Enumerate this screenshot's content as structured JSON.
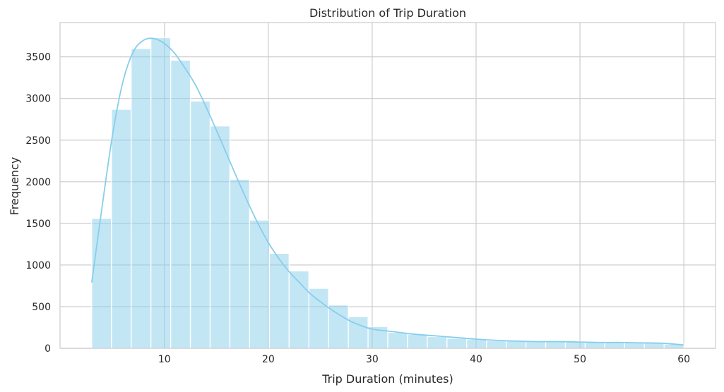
{
  "chart_data": {
    "type": "bar",
    "subtype": "histogram",
    "title": "Distribution of Trip Duration",
    "xlabel": "Trip Duration (minutes)",
    "ylabel": "Frequency",
    "xlim": [
      -0.05,
      63.05
    ],
    "ylim": [
      0,
      3912
    ],
    "xticks": [
      10,
      20,
      30,
      40,
      50,
      60
    ],
    "yticks": [
      0,
      500,
      1000,
      1500,
      2000,
      2500,
      3000,
      3500
    ],
    "grid": true,
    "legend": "none",
    "bin_edges": [
      3.0,
      4.9,
      6.8,
      8.7,
      10.6,
      12.5,
      14.4,
      16.3,
      18.2,
      20.1,
      22.0,
      23.9,
      25.8,
      27.7,
      29.6,
      31.5,
      33.4,
      35.3,
      37.2,
      39.1,
      41.0,
      42.9,
      44.8,
      46.7,
      48.6,
      50.5,
      52.4,
      54.3,
      56.2,
      58.1,
      60.0
    ],
    "values": [
      1560,
      2870,
      3600,
      3730,
      3460,
      2970,
      2670,
      2030,
      1540,
      1140,
      930,
      720,
      520,
      380,
      260,
      190,
      170,
      140,
      120,
      110,
      90,
      90,
      80,
      80,
      80,
      80,
      80,
      75,
      70,
      50
    ],
    "kde": {
      "x": [
        3.0,
        4.0,
        5.0,
        6.0,
        7.0,
        8.0,
        9.0,
        10.0,
        11.0,
        12.0,
        13.0,
        14.0,
        15.0,
        16.0,
        17.0,
        18.0,
        19.0,
        20.0,
        21.0,
        22.0,
        23.0,
        24.0,
        25.0,
        26.0,
        27.0,
        28.0,
        29.0,
        30.0,
        32.0,
        34.0,
        36.0,
        38.0,
        40.0,
        42.0,
        44.0,
        46.0,
        48.0,
        50.0,
        52.0,
        54.0,
        56.0,
        58.0,
        60.0
      ],
      "y": [
        790,
        1700,
        2560,
        3200,
        3560,
        3700,
        3720,
        3660,
        3540,
        3360,
        3160,
        2900,
        2620,
        2330,
        2040,
        1760,
        1500,
        1270,
        1080,
        920,
        790,
        660,
        560,
        470,
        390,
        320,
        270,
        230,
        200,
        170,
        150,
        130,
        110,
        95,
        85,
        80,
        80,
        75,
        70,
        70,
        65,
        60,
        40
      ]
    },
    "colors": {
      "bar_fill": "#87ceeb",
      "bar_fill_opacity": 0.5,
      "bar_edge": "#ffffff",
      "kde_line": "#87ceeb",
      "grid": "#cccccc",
      "axis_frame": "#cccccc",
      "text": "#262626",
      "background": "#ffffff"
    }
  }
}
